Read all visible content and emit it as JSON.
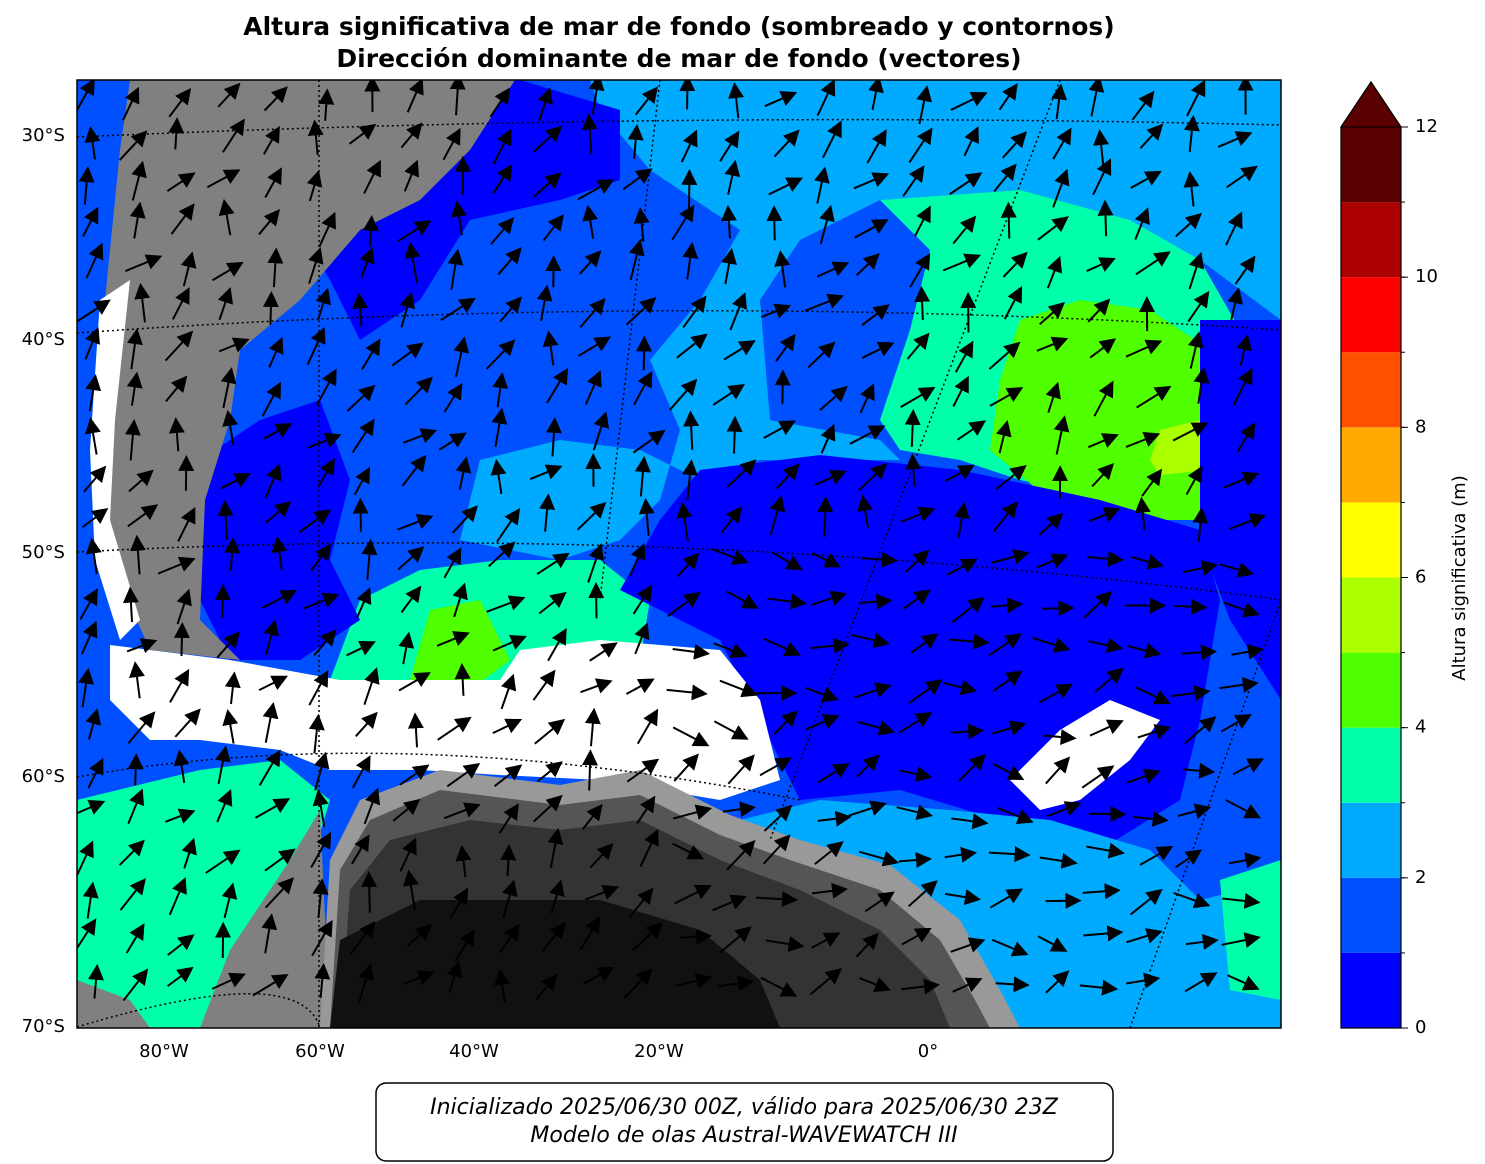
{
  "title": [
    "Altura significativa de mar de fondo (sombreado y contornos)",
    "Dirección dominante de mar de fondo (vectores)"
  ],
  "map": {
    "lat_labels": [
      "30°S",
      "40°S",
      "50°S",
      "60°S",
      "70°S"
    ],
    "lon_labels": [
      "80°W",
      "60°W",
      "40°W",
      "20°W",
      "0°"
    ]
  },
  "colorbar": {
    "label": "Altura significativa (m)",
    "levels": [
      0,
      1,
      2,
      3,
      4,
      5,
      6,
      7,
      8,
      9,
      10,
      11,
      12
    ],
    "colors": [
      "#0000ff",
      "#0050ff",
      "#00aaff",
      "#00ffaa",
      "#50ff00",
      "#aaff00",
      "#ffff00",
      "#ffaa00",
      "#ff5000",
      "#ff0000",
      "#aa0000",
      "#5a0000"
    ],
    "extend_color": "#5a0000",
    "ticks": [
      0,
      2,
      4,
      6,
      8,
      10,
      12
    ]
  },
  "footer": [
    "Inicializado 2025/06/30 00Z, válido para 2025/06/30 23Z",
    "Modelo de olas Austral-WAVEWATCH III"
  ]
}
